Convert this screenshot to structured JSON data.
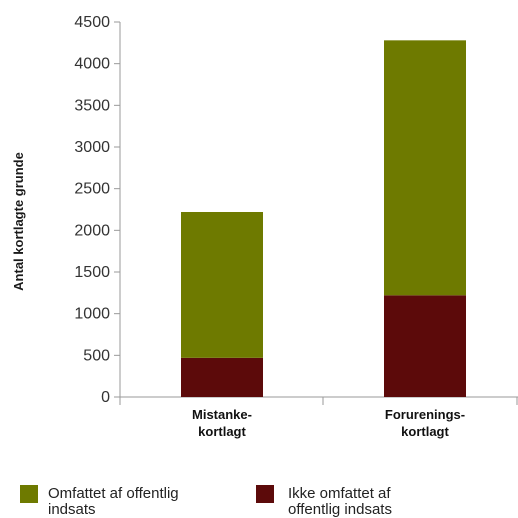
{
  "chart_data": {
    "type": "bar",
    "stacked": true,
    "categories": [
      [
        "Mistanke-",
        "kortlagt"
      ],
      [
        "Forurenings-",
        "kortlagt"
      ]
    ],
    "series": [
      {
        "name": "Ikke omfattet af offentlig indsats",
        "legend_lines": [
          "Ikke omfattet af",
          "offentlig indsats"
        ],
        "color": "#5c0a0a",
        "values": [
          470,
          1220
        ]
      },
      {
        "name": "Omfattet af offentlig indsats",
        "legend_lines": [
          "Omfattet af offentlig",
          "indsats"
        ],
        "color": "#6e7a00",
        "values": [
          1750,
          3060
        ]
      }
    ],
    "legend_order": [
      1,
      0
    ],
    "ylabel": "Antal kortlagte grunde",
    "xlabel": "",
    "ylim": [
      0,
      4500
    ],
    "yticks": [
      0,
      500,
      1000,
      1500,
      2000,
      2500,
      3000,
      3500,
      4000,
      4500
    ],
    "grid": false,
    "legend_position": "bottom"
  }
}
